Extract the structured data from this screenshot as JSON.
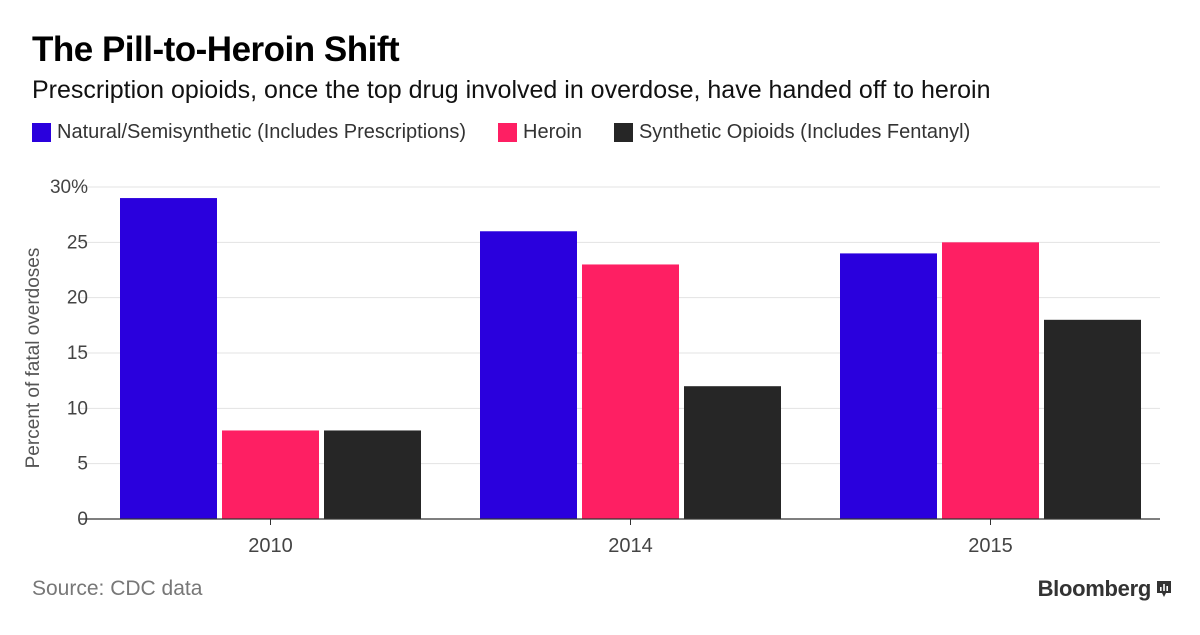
{
  "header": {
    "title": "The Pill-to-Heroin Shift",
    "subtitle": "Prescription opioids, once the top drug involved in overdose, have handed off to heroin"
  },
  "footer": {
    "source": "Source: CDC data",
    "brand": "Bloomberg"
  },
  "chart_data": {
    "type": "bar",
    "title": "The Pill-to-Heroin Shift",
    "subtitle": "Prescription opioids, once the top drug involved in overdose, have handed off to heroin",
    "xlabel": "",
    "ylabel": "Percent of fatal overdoses",
    "categories": [
      "2010",
      "2014",
      "2015"
    ],
    "ylim": [
      0,
      30
    ],
    "yticks": [
      0,
      5,
      10,
      15,
      20,
      25,
      30
    ],
    "ytick_labels": [
      "0",
      "5",
      "10",
      "15",
      "20",
      "25",
      "30%"
    ],
    "grid": true,
    "legend_position": "top",
    "series": [
      {
        "name": "Natural/Semisynthetic (Includes Prescriptions)",
        "color": "#2a00dd",
        "values": [
          29,
          26,
          24
        ]
      },
      {
        "name": "Heroin",
        "color": "#fe1f63",
        "values": [
          8,
          23,
          25
        ]
      },
      {
        "name": "Synthetic Opioids (Includes Fentanyl)",
        "color": "#262626",
        "values": [
          8,
          12,
          18
        ]
      }
    ]
  }
}
